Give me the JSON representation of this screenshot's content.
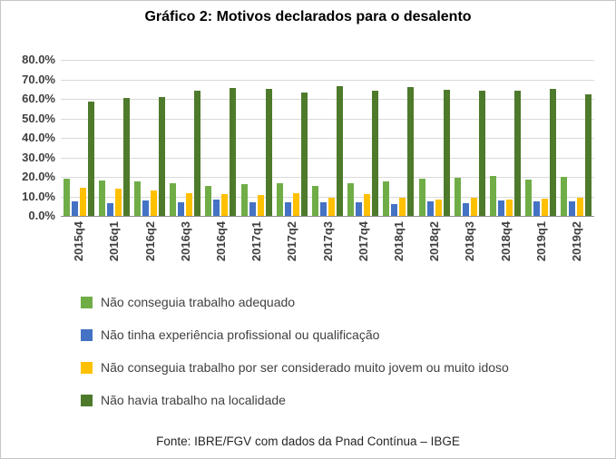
{
  "title": "Gráfico 2: Motivos declarados para o desalento",
  "footer": "Fonte: IBRE/FGV com dados da Pnad Contínua – IBGE",
  "chart_data": {
    "type": "bar",
    "title": "Gráfico 2: Motivos declarados para o desalento",
    "xlabel": "",
    "ylabel": "",
    "ylim": [
      0,
      80
    ],
    "ytick_step": 10,
    "ytick_format": "percent-one-decimal",
    "grid": true,
    "legend_position": "bottom-left",
    "source_note": "Fonte: IBRE/FGV com dados da Pnad Contínua – IBGE",
    "categories": [
      "2015q4",
      "2016q1",
      "2016q2",
      "2016q3",
      "2016q4",
      "2017q1",
      "2017q2",
      "2017q3",
      "2017q4",
      "2018q1",
      "2018q2",
      "2018q3",
      "2018q4",
      "2019q1",
      "2019q2"
    ],
    "series": [
      {
        "name": "Não conseguia trabalho adequado",
        "color": "#70AD47",
        "values": [
          19.0,
          18.0,
          17.5,
          17.0,
          15.5,
          16.5,
          17.0,
          15.5,
          17.0,
          17.5,
          19.0,
          19.5,
          20.5,
          18.5,
          20.0
        ]
      },
      {
        "name": "Não tinha experiência profissional ou qualificação",
        "color": "#4472C4",
        "values": [
          7.5,
          6.5,
          8.0,
          7.0,
          8.5,
          7.0,
          7.0,
          7.0,
          7.0,
          6.0,
          7.5,
          6.5,
          8.0,
          7.5,
          7.5
        ]
      },
      {
        "name": "Não conseguia trabalho por ser considerado muito jovem ou muito idoso",
        "color": "#FFC000",
        "values": [
          14.5,
          14.0,
          13.0,
          11.5,
          11.0,
          10.5,
          11.5,
          9.5,
          11.0,
          9.5,
          8.5,
          9.5,
          8.5,
          9.0,
          9.5
        ]
      },
      {
        "name": "Não havia trabalho na localidade",
        "color": "#4E7A2C",
        "values": [
          58.5,
          60.5,
          61.0,
          64.0,
          65.5,
          65.0,
          63.5,
          66.5,
          64.0,
          66.0,
          64.5,
          64.0,
          64.0,
          65.0,
          62.5
        ]
      }
    ]
  }
}
